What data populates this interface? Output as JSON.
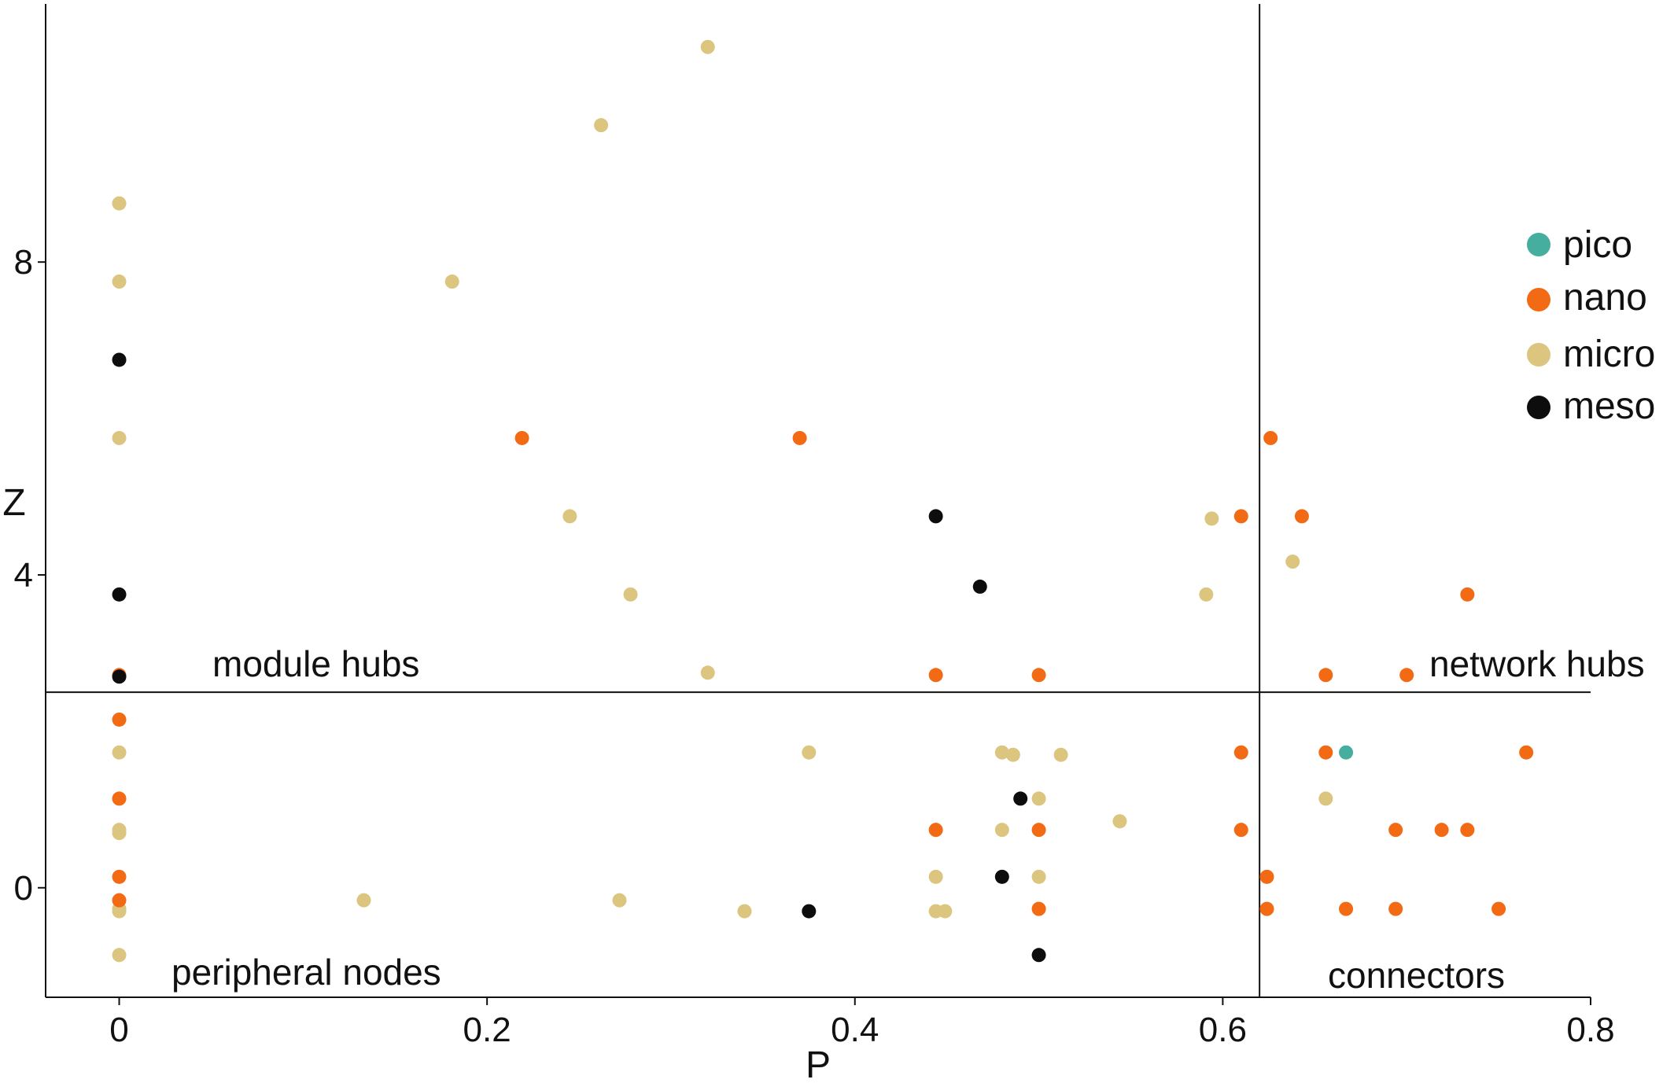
{
  "chart_data": {
    "type": "scatter",
    "xlabel": "P",
    "ylabel": "Z",
    "xlim": [
      -0.04,
      0.8
    ],
    "ylim": [
      -1.4,
      11.3
    ],
    "x_ticks": [
      0,
      0.2,
      0.4,
      0.6,
      0.8
    ],
    "x_tick_labels": [
      "0",
      "0.2",
      "0.4",
      "0.6",
      "0.8"
    ],
    "y_ticks": [
      0,
      4,
      8
    ],
    "y_tick_labels": [
      "0",
      "4",
      "8"
    ],
    "grid": false,
    "legend": "right",
    "thresholds": {
      "P": 0.62,
      "Z": 2.5
    },
    "region_labels": [
      {
        "id": "module-hubs",
        "text": "module hubs"
      },
      {
        "id": "network-hubs",
        "text": "network hubs"
      },
      {
        "id": "peripheral-nodes",
        "text": "peripheral nodes"
      },
      {
        "id": "connectors",
        "text": "connectors"
      }
    ],
    "series": [
      {
        "name": "pico",
        "color": "#45ae9f",
        "points": [
          [
            0.667,
            1.73
          ]
        ]
      },
      {
        "name": "nano",
        "color": "#f26a13",
        "points": [
          [
            0,
            2.72
          ],
          [
            0,
            2.15
          ],
          [
            0,
            1.14
          ],
          [
            0,
            0.14
          ],
          [
            0,
            -0.16
          ],
          [
            0.219,
            5.75
          ],
          [
            0.37,
            5.75
          ],
          [
            0.61,
            4.75
          ],
          [
            0.626,
            5.75
          ],
          [
            0.643,
            4.75
          ],
          [
            0.733,
            3.75
          ],
          [
            0.444,
            2.72
          ],
          [
            0.5,
            2.72
          ],
          [
            0.656,
            2.72
          ],
          [
            0.7,
            2.72
          ],
          [
            0.61,
            1.73
          ],
          [
            0.656,
            1.73
          ],
          [
            0.765,
            1.73
          ],
          [
            0.444,
            0.74
          ],
          [
            0.5,
            0.74
          ],
          [
            0.61,
            0.74
          ],
          [
            0.694,
            0.74
          ],
          [
            0.719,
            0.74
          ],
          [
            0.733,
            0.74
          ],
          [
            0.624,
            0.14
          ],
          [
            0.5,
            -0.27
          ],
          [
            0.624,
            -0.27
          ],
          [
            0.667,
            -0.27
          ],
          [
            0.694,
            -0.27
          ],
          [
            0.75,
            -0.27
          ]
        ]
      },
      {
        "name": "micro",
        "color": "#dbc57f",
        "points": [
          [
            0,
            8.75
          ],
          [
            0,
            7.75
          ],
          [
            0,
            5.75
          ],
          [
            0,
            1.73
          ],
          [
            0,
            0.74
          ],
          [
            0,
            0.7
          ],
          [
            0,
            -0.27
          ],
          [
            0,
            -0.3
          ],
          [
            0,
            -0.86
          ],
          [
            0.32,
            10.75
          ],
          [
            0.262,
            9.75
          ],
          [
            0.181,
            7.75
          ],
          [
            0.245,
            4.75
          ],
          [
            0.278,
            3.75
          ],
          [
            0.32,
            2.75
          ],
          [
            0.594,
            4.72
          ],
          [
            0.591,
            3.75
          ],
          [
            0.638,
            4.17
          ],
          [
            0.375,
            1.73
          ],
          [
            0.48,
            1.73
          ],
          [
            0.486,
            1.7
          ],
          [
            0.512,
            1.7
          ],
          [
            0.5,
            1.14
          ],
          [
            0.656,
            1.14
          ],
          [
            0.48,
            0.74
          ],
          [
            0.544,
            0.85
          ],
          [
            0.133,
            -0.16
          ],
          [
            0.272,
            -0.16
          ],
          [
            0.34,
            -0.3
          ],
          [
            0.444,
            0.14
          ],
          [
            0.5,
            0.14
          ],
          [
            0.444,
            -0.3
          ],
          [
            0.449,
            -0.3
          ]
        ]
      },
      {
        "name": "meso",
        "color": "#0d0d0d",
        "points": [
          [
            0,
            6.75
          ],
          [
            0,
            3.75
          ],
          [
            0,
            2.7
          ],
          [
            0.444,
            4.75
          ],
          [
            0.468,
            3.85
          ],
          [
            0.49,
            1.14
          ],
          [
            0.48,
            0.14
          ],
          [
            0.375,
            -0.3
          ],
          [
            0.5,
            -0.86
          ]
        ]
      }
    ]
  }
}
